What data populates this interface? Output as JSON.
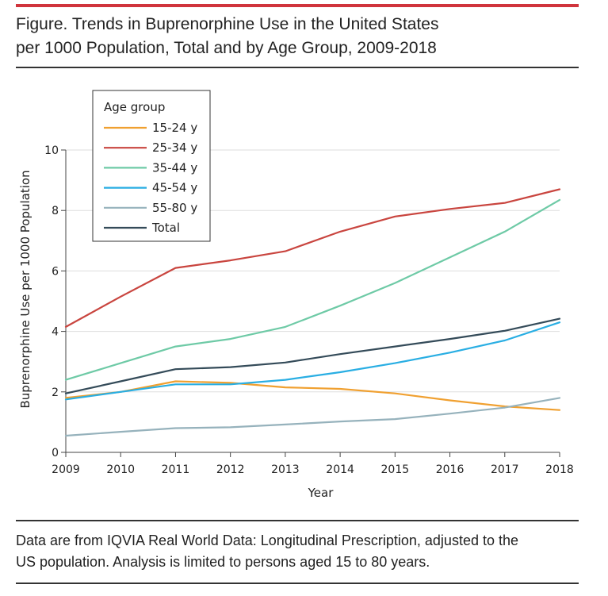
{
  "figure": {
    "title_line1": "Figure. Trends in Buprenorphine Use in the United States",
    "title_line2": "per 1000 Population, Total and by Age Group, 2009-2018",
    "note_line1": "Data are from IQVIA Real World Data: Longitudinal Prescription, adjusted to the",
    "note_line2": "US population. Analysis is limited to persons aged 15 to 80 years.",
    "accent_color": "#d0343c"
  },
  "chart_data": {
    "type": "line",
    "title": "Trends in Buprenorphine Use in the United States per 1000 Population, Total and by Age Group, 2009-2018",
    "xlabel": "Year",
    "ylabel": "Buprenorphine Use per 1000 Population",
    "x": [
      2009,
      2010,
      2011,
      2012,
      2013,
      2014,
      2015,
      2016,
      2017,
      2018
    ],
    "x_ticks": [
      "2009",
      "2010",
      "2011",
      "2012",
      "2013",
      "2014",
      "2015",
      "2016",
      "2017",
      "2018"
    ],
    "y_ticks": [
      "0",
      "2",
      "4",
      "6",
      "8",
      "10"
    ],
    "ylim": [
      0,
      10
    ],
    "grid": "horizontal",
    "legend_title": "Age group",
    "legend_position": "top-left",
    "series": [
      {
        "name": "15-24 y",
        "color": "#f0a030",
        "values": [
          1.8,
          2.0,
          2.35,
          2.3,
          2.15,
          2.1,
          1.95,
          1.72,
          1.52,
          1.4
        ]
      },
      {
        "name": "25-34 y",
        "color": "#c9453f",
        "values": [
          4.15,
          5.15,
          6.1,
          6.35,
          6.65,
          7.3,
          7.8,
          8.05,
          8.25,
          8.7
        ]
      },
      {
        "name": "35-44 y",
        "color": "#6ecaa6",
        "values": [
          2.4,
          2.95,
          3.5,
          3.75,
          4.15,
          4.85,
          5.6,
          6.45,
          7.3,
          8.35
        ]
      },
      {
        "name": "45-54 y",
        "color": "#29aee3",
        "values": [
          1.75,
          2.0,
          2.25,
          2.25,
          2.4,
          2.65,
          2.95,
          3.3,
          3.7,
          4.3
        ]
      },
      {
        "name": "55-80 y",
        "color": "#96b2bc",
        "values": [
          0.55,
          0.68,
          0.8,
          0.83,
          0.92,
          1.02,
          1.1,
          1.28,
          1.48,
          1.8
        ]
      },
      {
        "name": "Total",
        "color": "#344b59",
        "values": [
          1.95,
          2.35,
          2.75,
          2.82,
          2.97,
          3.25,
          3.5,
          3.75,
          4.02,
          4.42
        ]
      }
    ]
  }
}
